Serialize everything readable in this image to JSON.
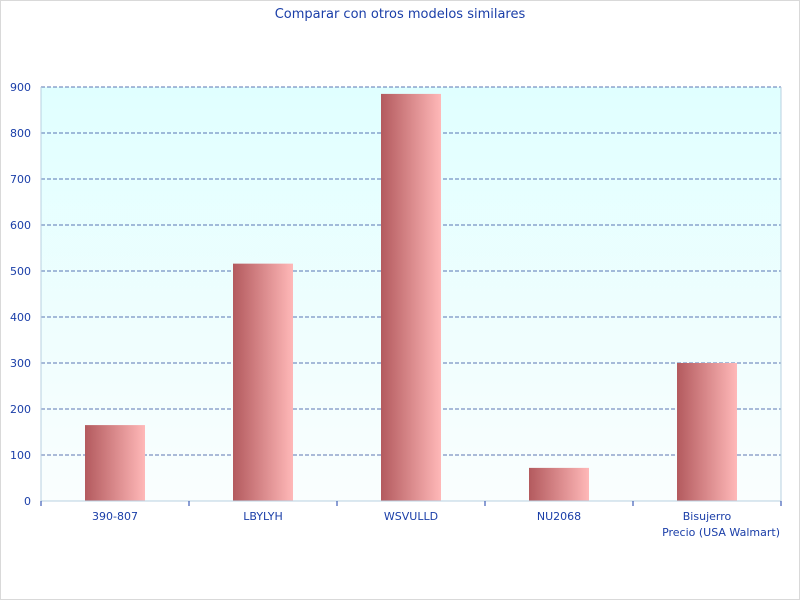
{
  "chart_data": {
    "type": "bar",
    "title": "Comparar con otros modelos similares",
    "xlabel": "Precio (USA Walmart)",
    "ylabel": "",
    "categories": [
      "390-807",
      "LBYLYH",
      "WSVULLD",
      "NU2068",
      "Bisujerro"
    ],
    "series": [
      {
        "values": [
          165,
          516,
          885,
          72,
          300
        ]
      }
    ],
    "ylim": [
      0,
      900
    ],
    "yticks": [
      0,
      100,
      200,
      300,
      400,
      500,
      600,
      700,
      800,
      900
    ],
    "grid": true,
    "legend": "none"
  },
  "colors": {
    "text": "#1a3ea8",
    "grid": "#2a4a9a",
    "plot_bg_top": "#e0ffff",
    "plot_bg_bottom": "#fafefe",
    "bar_dark": "#b35a5e",
    "bar_light": "#ffb8b8",
    "axis": "#b8d0e0"
  }
}
